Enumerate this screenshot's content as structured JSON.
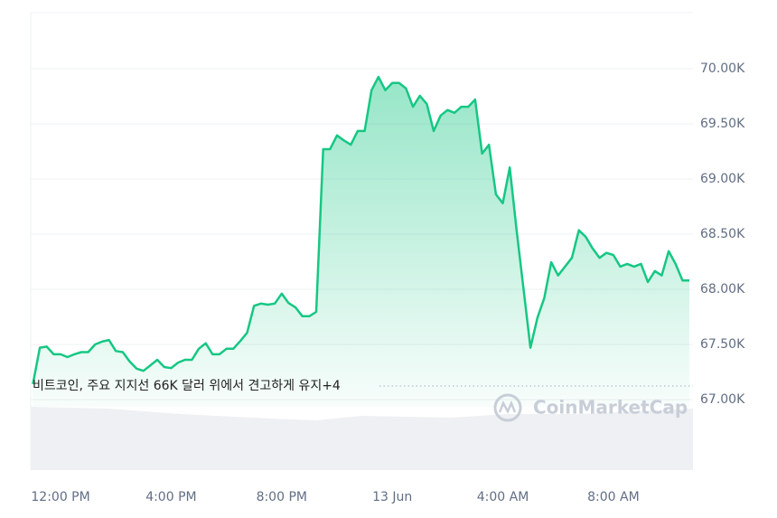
{
  "chart_data": {
    "type": "area",
    "annotation": "비트코인, 주요 지지선 66K 달러 위에서 견고하게 유지+4",
    "watermark": "CoinMarketCap",
    "color": "#16c784",
    "grid": true,
    "x": [
      11,
      11.25,
      11.5,
      11.75,
      12,
      12.25,
      12.5,
      12.75,
      13,
      13.25,
      13.5,
      13.75,
      14,
      14.25,
      14.5,
      14.75,
      15,
      15.25,
      15.5,
      15.75,
      16,
      16.25,
      16.5,
      16.75,
      17,
      17.25,
      17.5,
      17.75,
      18,
      18.25,
      18.5,
      18.75,
      19,
      19.25,
      19.5,
      19.75,
      20,
      20.25,
      20.5,
      20.75,
      21,
      21.25,
      21.5,
      21.75,
      22,
      22.25,
      22.5,
      22.75,
      23,
      23.25,
      23.5,
      23.75,
      24,
      24.25,
      24.5,
      24.75,
      25,
      25.25,
      25.5,
      25.75,
      26,
      26.25,
      26.5,
      26.75,
      27,
      27.25,
      27.5,
      27.75,
      28,
      28.25,
      28.5,
      28.75,
      29,
      29.25,
      29.5,
      29.75,
      30,
      30.25,
      30.5,
      30.75,
      31,
      31.25,
      31.5,
      31.75,
      32,
      32.25,
      32.5,
      32.75,
      33,
      33.25,
      33.5,
      33.75,
      34,
      34.25,
      34.5,
      34.75
    ],
    "values": [
      67140,
      67470,
      67480,
      67410,
      67410,
      67385,
      67410,
      67430,
      67430,
      67500,
      67525,
      67540,
      67440,
      67430,
      67345,
      67280,
      67260,
      67310,
      67360,
      67295,
      67285,
      67335,
      67360,
      67360,
      67460,
      67510,
      67410,
      67410,
      67460,
      67460,
      67530,
      67605,
      67850,
      67870,
      67860,
      67870,
      67960,
      67875,
      67835,
      67755,
      67755,
      67795,
      69270,
      69270,
      69395,
      69350,
      69310,
      69435,
      69435,
      69805,
      69925,
      69805,
      69870,
      69870,
      69820,
      69655,
      69755,
      69680,
      69435,
      69575,
      69625,
      69600,
      69655,
      69655,
      69720,
      69230,
      69310,
      68860,
      68780,
      69105,
      68535,
      68000,
      67470,
      67740,
      67920,
      68245,
      68125,
      68205,
      68285,
      68535,
      68475,
      68370,
      68285,
      68330,
      68310,
      68205,
      68230,
      68205,
      68230,
      68065,
      68165,
      68125,
      68345,
      68230,
      68080,
      68080
    ],
    "xlim": [
      10.92,
      34.88
    ],
    "xticks": [
      {
        "value": 12,
        "label": "12:00 PM"
      },
      {
        "value": 16,
        "label": "4:00 PM"
      },
      {
        "value": 20,
        "label": "8:00 PM"
      },
      {
        "value": 24,
        "label": "13 Jun"
      },
      {
        "value": 28,
        "label": "4:00 AM"
      },
      {
        "value": 32,
        "label": "8:00 AM"
      }
    ],
    "ylim": [
      66934,
      70508
    ],
    "yticks": [
      {
        "value": 67000,
        "label": "67.00K"
      },
      {
        "value": 67500,
        "label": "67.50K"
      },
      {
        "value": 68000,
        "label": "68.00K"
      },
      {
        "value": 68500,
        "label": "68.50K"
      },
      {
        "value": 69000,
        "label": "69.00K"
      },
      {
        "value": 69500,
        "label": "69.50K"
      },
      {
        "value": 70000,
        "label": "70.00K"
      }
    ]
  }
}
